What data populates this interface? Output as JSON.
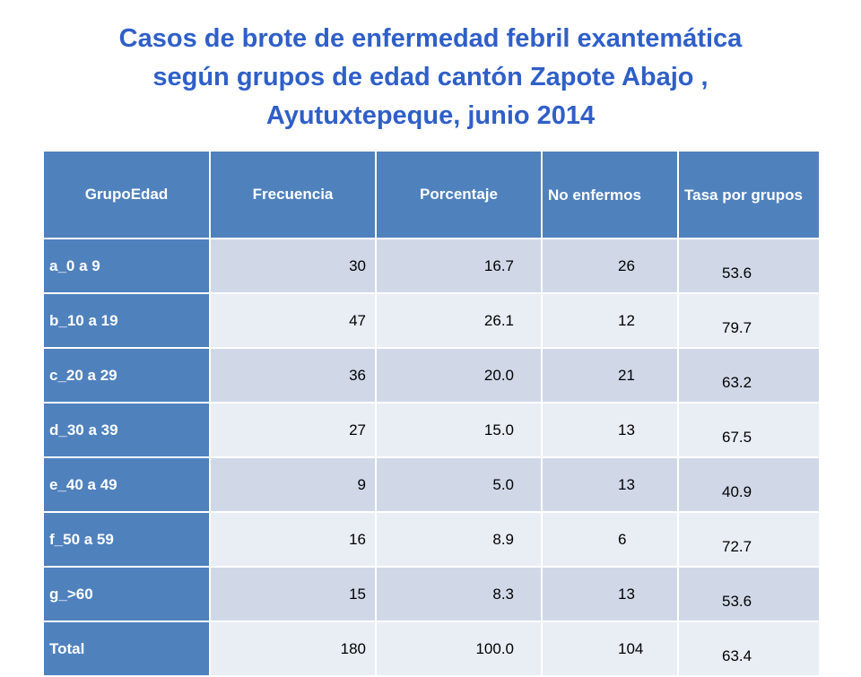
{
  "title_lines": [
    "Casos de brote de enfermedad febril exantemática",
    "según grupos de edad cantón Zapote Abajo ,",
    "Ayutuxtepeque, junio 2014"
  ],
  "table": {
    "headers": [
      "GrupoEdad",
      "Frecuencia",
      "Porcentaje",
      "No enfermos",
      "Tasa por grupos"
    ],
    "rows": [
      [
        "a_0 a 9",
        "30",
        "16.7",
        "26",
        "53.6"
      ],
      [
        "b_10 a 19",
        "47",
        "26.1",
        "12",
        "79.7"
      ],
      [
        "c_20 a 29",
        "36",
        "20.0",
        "21",
        "63.2"
      ],
      [
        "d_30 a 39",
        "27",
        "15.0",
        "13",
        "67.5"
      ],
      [
        "e_40 a 49",
        "9",
        "5.0",
        "13",
        "40.9"
      ],
      [
        "f_50 a 59",
        "16",
        "8.9",
        "6",
        "72.7"
      ],
      [
        "g_>60",
        "15",
        "8.3",
        "13",
        "53.6"
      ],
      [
        "Total",
        "180",
        "100.0",
        "104",
        "63.4"
      ]
    ]
  },
  "colors": {
    "title": "#2f5fc8",
    "header_bg": "#4f81bd",
    "row_odd": "#d0d8e8",
    "row_even": "#e9edf4"
  }
}
